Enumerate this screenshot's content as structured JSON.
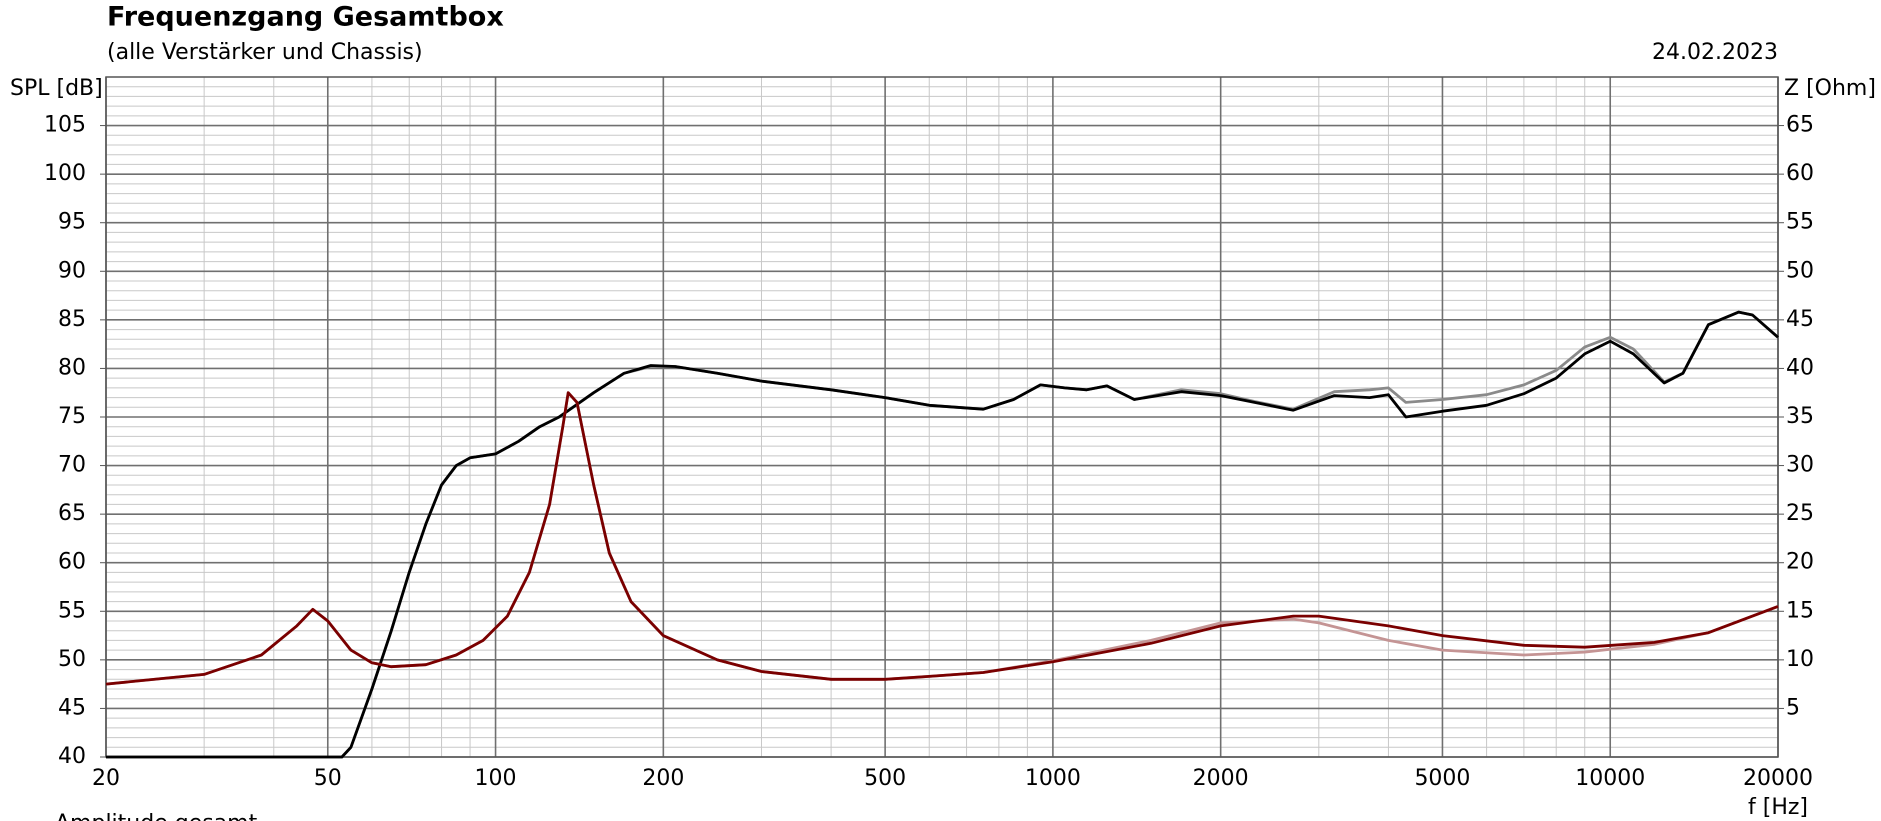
{
  "chart_data": {
    "type": "line",
    "title": "Frequenzgang Gesamtbox",
    "subtitle": "(alle Verstärker und Chassis)",
    "date": "24.02.2023",
    "ylabel": "SPL [dB]",
    "y2label": "Z [Ohm]",
    "xlabel": "f [Hz]",
    "footer": "Amplitude gesamt",
    "xscale": "log",
    "grid": true,
    "minor_grid": true,
    "xlim": [
      20,
      20000
    ],
    "xticks": [
      20,
      50,
      100,
      200,
      500,
      1000,
      2000,
      5000,
      10000,
      20000
    ],
    "ylim": [
      40,
      110
    ],
    "yticks": [
      40,
      45,
      50,
      55,
      60,
      65,
      70,
      75,
      80,
      85,
      90,
      95,
      100,
      105
    ],
    "y2lim": [
      0,
      70
    ],
    "y2ticks": [
      5,
      10,
      15,
      20,
      25,
      30,
      35,
      40,
      45,
      50,
      55,
      60,
      65
    ],
    "series": [
      {
        "color": "#8a8a8a",
        "x": [
          20,
          53,
          55,
          60,
          65,
          70,
          75,
          80,
          85,
          90,
          100,
          110,
          120,
          130,
          150,
          170,
          190,
          210,
          250,
          300,
          400,
          500,
          600,
          750,
          850,
          950,
          1050,
          1150,
          1250,
          1400,
          1700,
          2000,
          2300,
          2700,
          3200,
          3700,
          4000,
          4300,
          5000,
          6000,
          7000,
          8000,
          9000,
          10000,
          11000,
          12500,
          13500,
          15000,
          17000,
          18000,
          20000
        ],
        "values": [
          40,
          40,
          41,
          47,
          53,
          59,
          64,
          68,
          70,
          70.8,
          71.2,
          72.5,
          74,
          75,
          77.5,
          79.5,
          80.2,
          80.2,
          79.5,
          78.7,
          77.8,
          77,
          76.2,
          75.8,
          76.8,
          78.3,
          78,
          77.8,
          78.2,
          76.8,
          77.8,
          77.4,
          76.6,
          75.8,
          77.6,
          77.8,
          78,
          76.5,
          76.8,
          77.3,
          78.3,
          79.8,
          82.2,
          83.2,
          82,
          78.6,
          79.5,
          84.5,
          85.8,
          85.5,
          83.2
        ]
      },
      {
        "color": "#000000",
        "x": [
          20,
          53,
          55,
          60,
          65,
          70,
          75,
          80,
          85,
          90,
          100,
          110,
          120,
          130,
          150,
          170,
          190,
          210,
          250,
          300,
          400,
          500,
          600,
          750,
          850,
          950,
          1050,
          1150,
          1250,
          1400,
          1700,
          2000,
          2300,
          2700,
          3200,
          3700,
          4000,
          4300,
          5000,
          6000,
          7000,
          8000,
          9000,
          10000,
          11000,
          12500,
          13500,
          15000,
          17000,
          18000,
          20000
        ],
        "values": [
          40,
          40,
          41,
          47,
          53,
          59,
          64,
          68,
          70,
          70.8,
          71.2,
          72.5,
          74,
          75,
          77.5,
          79.5,
          80.3,
          80.2,
          79.5,
          78.7,
          77.8,
          77,
          76.2,
          75.8,
          76.8,
          78.3,
          78,
          77.8,
          78.2,
          76.8,
          77.6,
          77.2,
          76.5,
          75.7,
          77.2,
          77,
          77.3,
          75,
          75.6,
          76.2,
          77.4,
          79,
          81.5,
          82.8,
          81.5,
          78.5,
          79.5,
          84.5,
          85.8,
          85.5,
          83.2
        ]
      },
      {
        "color": "#c49494",
        "axis": "y2",
        "x": [
          20,
          30,
          38,
          44,
          47,
          50,
          55,
          60,
          65,
          75,
          85,
          95,
          105,
          115,
          125,
          132,
          135,
          140,
          150,
          160,
          175,
          200,
          250,
          300,
          400,
          500,
          600,
          750,
          1000,
          1500,
          2000,
          2700,
          3000,
          4000,
          5000,
          7000,
          9000,
          12000,
          15000,
          20000
        ],
        "values": [
          7.5,
          8.5,
          10.5,
          13.5,
          15.2,
          14,
          11,
          9.7,
          9.3,
          9.5,
          10.5,
          12,
          14.5,
          19,
          26,
          34,
          37.5,
          36.5,
          28,
          21,
          16,
          12.5,
          10,
          8.8,
          8,
          8,
          8.3,
          8.7,
          9.9,
          12,
          13.8,
          14.2,
          13.8,
          12,
          11,
          10.5,
          10.8,
          11.6,
          12.8,
          15.5
        ]
      },
      {
        "color": "#7a0000",
        "axis": "y2",
        "x": [
          20,
          30,
          38,
          44,
          47,
          50,
          55,
          60,
          65,
          75,
          85,
          95,
          105,
          115,
          125,
          132,
          135,
          140,
          150,
          160,
          175,
          200,
          250,
          300,
          400,
          500,
          600,
          750,
          1000,
          1500,
          2000,
          2700,
          3000,
          4000,
          5000,
          7000,
          9000,
          12000,
          15000,
          20000
        ],
        "values": [
          7.5,
          8.5,
          10.5,
          13.5,
          15.2,
          14,
          11,
          9.7,
          9.3,
          9.5,
          10.5,
          12,
          14.5,
          19,
          26,
          34,
          37.5,
          36.5,
          28,
          21,
          16,
          12.5,
          10,
          8.8,
          8,
          8,
          8.3,
          8.7,
          9.8,
          11.7,
          13.5,
          14.5,
          14.5,
          13.5,
          12.5,
          11.5,
          11.3,
          11.8,
          12.8,
          15.5
        ]
      }
    ]
  }
}
